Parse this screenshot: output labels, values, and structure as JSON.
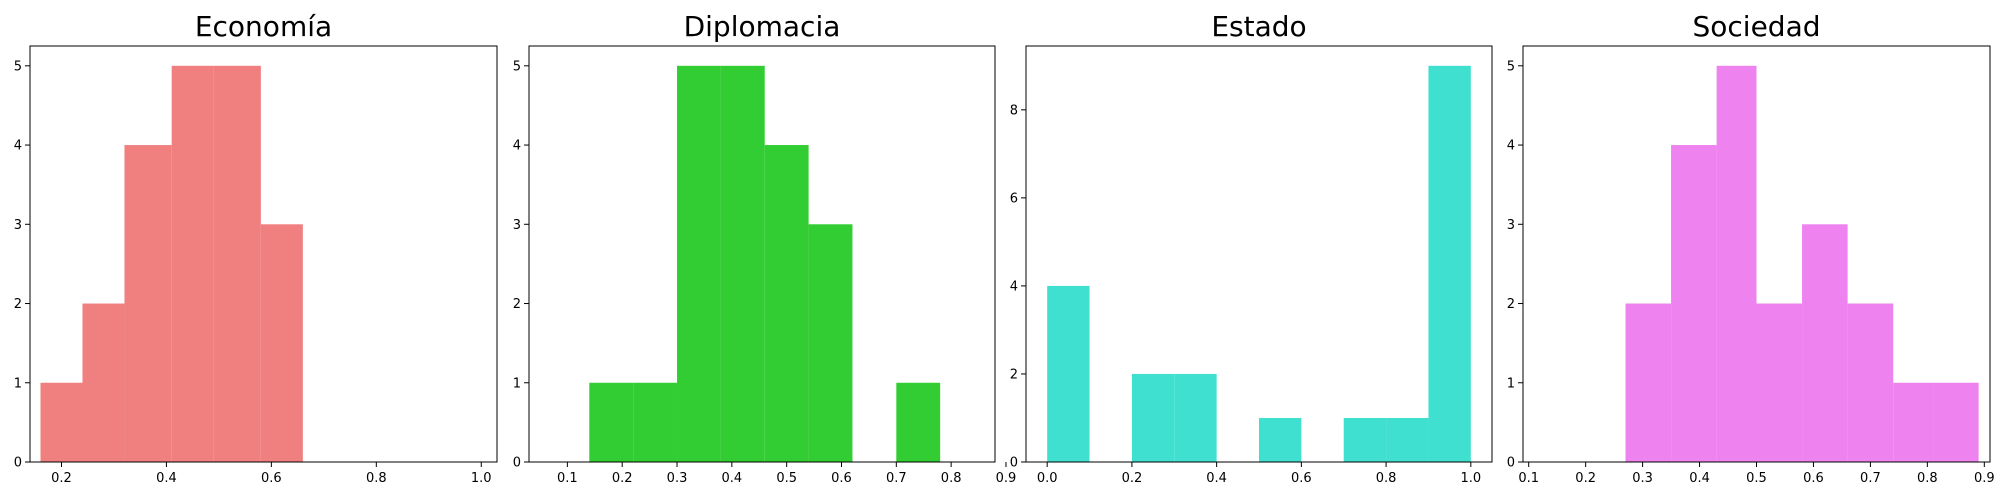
{
  "chart_data": [
    {
      "type": "histogram",
      "title": "Economía",
      "color": "#f08080",
      "xlim": [
        0.14,
        1.03
      ],
      "ylim": [
        0,
        5.25
      ],
      "xticks": [
        0.2,
        0.4,
        0.6,
        0.8,
        1.0
      ],
      "xtick_labels": [
        "0.2",
        "0.4",
        "0.6",
        "0.8",
        "1.0"
      ],
      "yticks": [
        0,
        1,
        2,
        3,
        4,
        5
      ],
      "ytick_labels": [
        "0",
        "1",
        "2",
        "3",
        "4",
        "5"
      ],
      "bin_edges": [
        0.16,
        0.24,
        0.32,
        0.41,
        0.49,
        0.58,
        0.66
      ],
      "counts": [
        1,
        2,
        4,
        5,
        5,
        3
      ]
    },
    {
      "type": "histogram",
      "title": "Diplomacia",
      "color": "#32cd32",
      "xlim": [
        0.03,
        0.88
      ],
      "ylim": [
        0,
        5.25
      ],
      "xticks": [
        0.1,
        0.2,
        0.3,
        0.4,
        0.5,
        0.6,
        0.7,
        0.8,
        0.9
      ],
      "xtick_labels": [
        "0.1",
        "0.2",
        "0.3",
        "0.4",
        "0.5",
        "0.6",
        "0.7",
        "0.8",
        "0.9"
      ],
      "yticks": [
        0,
        1,
        2,
        3,
        4,
        5
      ],
      "ytick_labels": [
        "0",
        "1",
        "2",
        "3",
        "4",
        "5"
      ],
      "bin_edges": [
        0.14,
        0.22,
        0.3,
        0.38,
        0.46,
        0.54,
        0.62,
        0.7,
        0.78
      ],
      "counts": [
        1,
        1,
        5,
        5,
        4,
        3,
        0,
        1
      ]
    },
    {
      "type": "histogram",
      "title": "Estado",
      "color": "#40e0d0",
      "xlim": [
        -0.05,
        1.05
      ],
      "ylim": [
        0,
        9.45
      ],
      "xticks": [
        0.0,
        0.2,
        0.4,
        0.6,
        0.8,
        1.0
      ],
      "xtick_labels": [
        "0.0",
        "0.2",
        "0.4",
        "0.6",
        "0.8",
        "1.0"
      ],
      "yticks": [
        0,
        2,
        4,
        6,
        8
      ],
      "ytick_labels": [
        "0",
        "2",
        "4",
        "6",
        "8"
      ],
      "bin_edges": [
        0.0,
        0.1,
        0.2,
        0.3,
        0.4,
        0.5,
        0.6,
        0.7,
        0.8,
        0.9,
        1.0
      ],
      "counts": [
        4,
        0,
        2,
        2,
        0,
        1,
        0,
        1,
        1,
        9
      ]
    },
    {
      "type": "histogram",
      "title": "Sociedad",
      "color": "#ee82ee",
      "xlim": [
        0.09,
        0.91
      ],
      "ylim": [
        0,
        5.25
      ],
      "xticks": [
        0.1,
        0.2,
        0.3,
        0.4,
        0.5,
        0.6,
        0.7,
        0.8,
        0.9
      ],
      "xtick_labels": [
        "0.1",
        "0.2",
        "0.3",
        "0.4",
        "0.5",
        "0.6",
        "0.7",
        "0.8",
        "0.9"
      ],
      "yticks": [
        0,
        1,
        2,
        3,
        4,
        5
      ],
      "ytick_labels": [
        "0",
        "1",
        "2",
        "3",
        "4",
        "5"
      ],
      "bin_edges": [
        0.27,
        0.35,
        0.43,
        0.5,
        0.58,
        0.66,
        0.74,
        0.81,
        0.89
      ],
      "counts": [
        2,
        4,
        5,
        2,
        3,
        2,
        1,
        1
      ]
    }
  ]
}
